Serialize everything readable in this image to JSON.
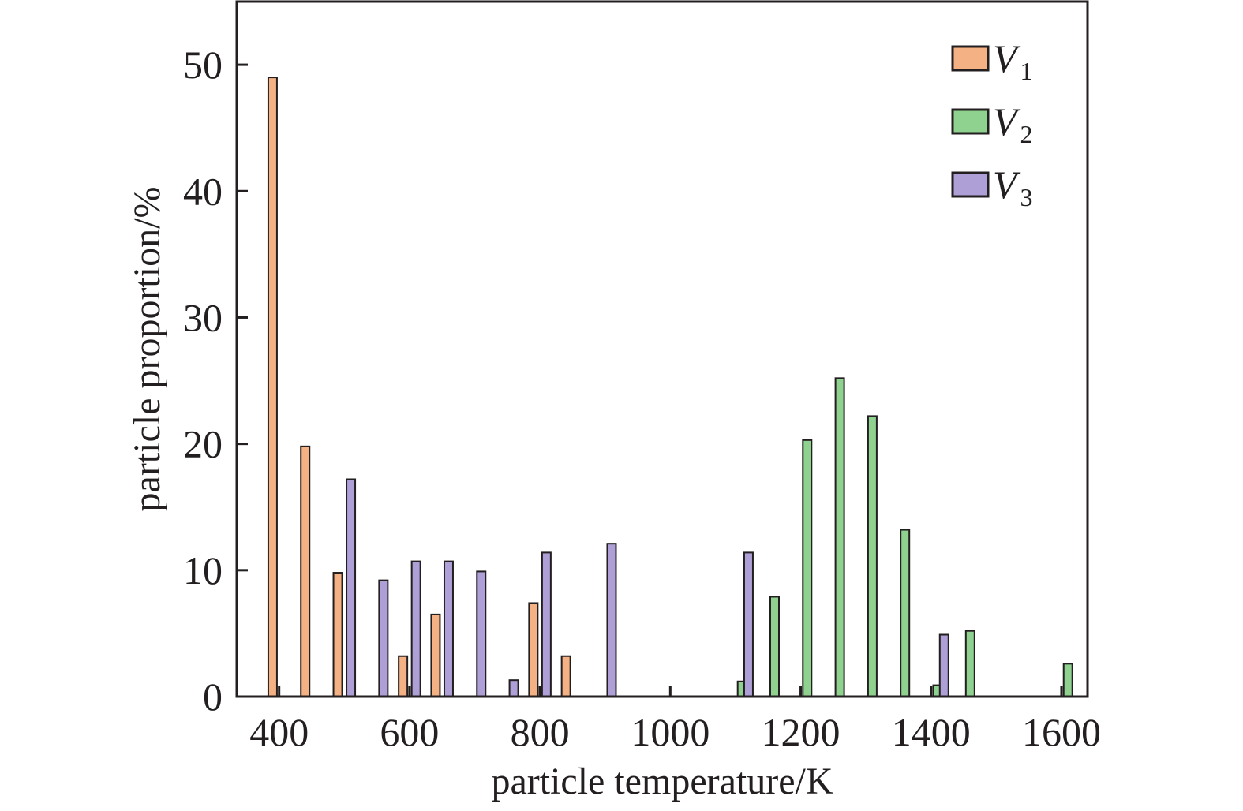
{
  "chart_data": {
    "type": "bar",
    "xlabel": "particle temperature/K",
    "ylabel": "particle proportion/%",
    "xlim": [
      335,
      1640
    ],
    "ylim": [
      0,
      55
    ],
    "xticks": [
      400,
      600,
      800,
      1000,
      1200,
      1400,
      1600
    ],
    "yticks": [
      0,
      10,
      20,
      30,
      40,
      50
    ],
    "grid": false,
    "legend_position": "top-right",
    "series": [
      {
        "name": "V",
        "subscript": "1",
        "color": "#f4b183",
        "points": [
          {
            "x": 390,
            "y": 49.0
          },
          {
            "x": 440,
            "y": 19.8
          },
          {
            "x": 490,
            "y": 9.8
          },
          {
            "x": 590,
            "y": 3.2
          },
          {
            "x": 640,
            "y": 6.5
          },
          {
            "x": 790,
            "y": 7.4
          },
          {
            "x": 840,
            "y": 3.2
          }
        ]
      },
      {
        "name": "V",
        "subscript": "2",
        "color": "#8fd18f",
        "points": [
          {
            "x": 1110,
            "y": 1.2
          },
          {
            "x": 1160,
            "y": 7.9
          },
          {
            "x": 1210,
            "y": 20.3
          },
          {
            "x": 1260,
            "y": 25.2
          },
          {
            "x": 1310,
            "y": 22.2
          },
          {
            "x": 1360,
            "y": 13.2
          },
          {
            "x": 1410,
            "y": 0.9
          },
          {
            "x": 1460,
            "y": 5.2
          },
          {
            "x": 1610,
            "y": 2.6
          }
        ]
      },
      {
        "name": "V",
        "subscript": "3",
        "color": "#ae9fd6",
        "points": [
          {
            "x": 510,
            "y": 17.2
          },
          {
            "x": 560,
            "y": 9.2
          },
          {
            "x": 610,
            "y": 10.7
          },
          {
            "x": 660,
            "y": 10.7
          },
          {
            "x": 710,
            "y": 9.9
          },
          {
            "x": 760,
            "y": 1.3
          },
          {
            "x": 810,
            "y": 11.4
          },
          {
            "x": 910,
            "y": 12.1
          },
          {
            "x": 1120,
            "y": 11.4
          },
          {
            "x": 1420,
            "y": 4.9
          }
        ]
      }
    ]
  }
}
